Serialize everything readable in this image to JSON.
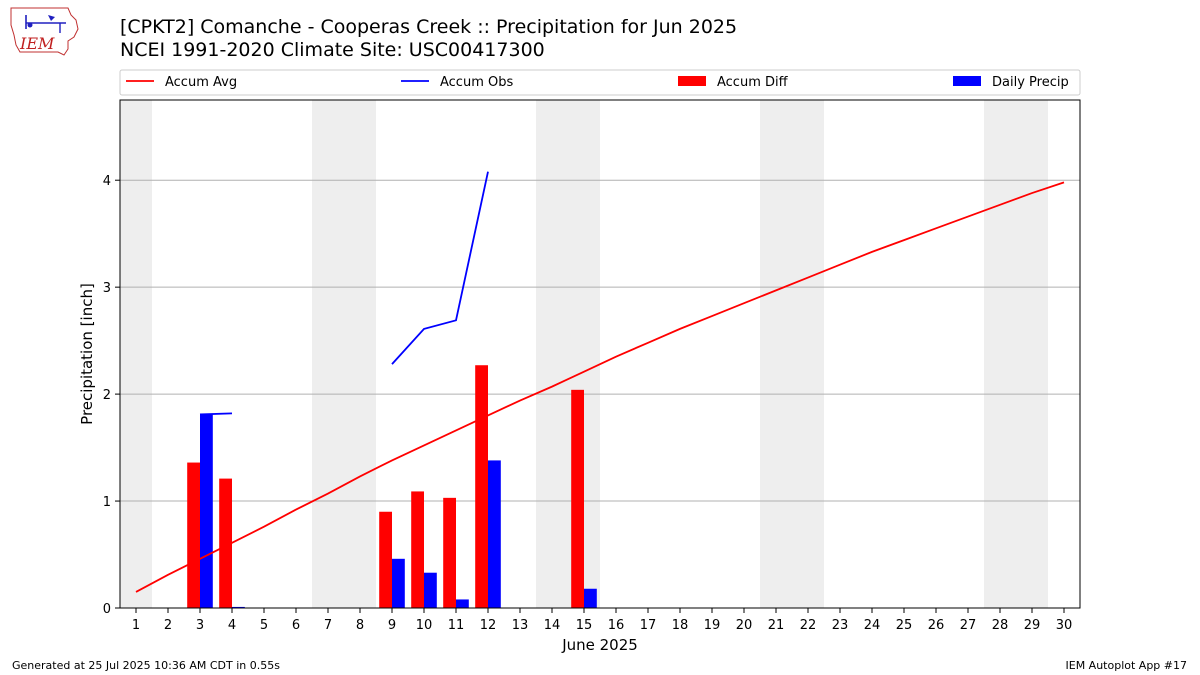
{
  "header": {
    "title_line1": "[CPKT2] Comanche - Cooperas Creek :: Precipitation for Jun 2025",
    "title_line2": "NCEI 1991-2020 Climate Site: USC00417300"
  },
  "logo": {
    "text": "IEM",
    "icon": "iem-iowa-logo"
  },
  "footer": {
    "left": "Generated at 25 Jul 2025 10:36 AM CDT in 0.55s",
    "right": "IEM Autoplot App #17"
  },
  "colors": {
    "avg": "#ff0000",
    "obs": "#0000ff",
    "diff": "#ff0000",
    "daily": "#0000ff",
    "weekend": "#eeeeee",
    "grid": "#b0b0b0"
  },
  "chart_data": {
    "type": "bar",
    "xlabel": "June 2025",
    "ylabel": "Precipitation [inch]",
    "xlim": [
      0.5,
      30.5
    ],
    "ylim": [
      0,
      4.75
    ],
    "yticks": [
      0,
      1,
      2,
      3,
      4
    ],
    "grid": true,
    "legend_placement": "top",
    "weekend_shading_days": [
      1,
      7,
      8,
      14,
      15,
      21,
      22,
      28,
      29
    ],
    "days": [
      1,
      2,
      3,
      4,
      5,
      6,
      7,
      8,
      9,
      10,
      11,
      12,
      13,
      14,
      15,
      16,
      17,
      18,
      19,
      20,
      21,
      22,
      23,
      24,
      25,
      26,
      27,
      28,
      29,
      30
    ],
    "series": [
      {
        "name": "Accum Avg",
        "kind": "line",
        "values": [
          0.15,
          0.31,
          0.46,
          0.61,
          0.76,
          0.92,
          1.07,
          1.23,
          1.38,
          1.52,
          1.66,
          1.8,
          1.94,
          2.07,
          2.21,
          2.35,
          2.48,
          2.61,
          2.73,
          2.85,
          2.97,
          3.09,
          3.21,
          3.33,
          3.44,
          3.55,
          3.66,
          3.77,
          3.88,
          3.98
        ]
      },
      {
        "name": "Accum Obs",
        "kind": "line",
        "segments": [
          {
            "x": [
              3,
              4
            ],
            "y": [
              1.81,
              1.82
            ]
          },
          {
            "x": [
              9,
              10,
              11,
              12
            ],
            "y": [
              2.28,
              2.61,
              2.69,
              4.08
            ]
          }
        ]
      },
      {
        "name": "Accum Diff",
        "kind": "bar",
        "points": [
          {
            "x": 3,
            "y": 1.36
          },
          {
            "x": 4,
            "y": 1.21
          },
          {
            "x": 9,
            "y": 0.9
          },
          {
            "x": 10,
            "y": 1.09
          },
          {
            "x": 11,
            "y": 1.03
          },
          {
            "x": 12,
            "y": 2.27
          },
          {
            "x": 15,
            "y": 2.04
          }
        ]
      },
      {
        "name": "Daily Precip",
        "kind": "bar",
        "points": [
          {
            "x": 3,
            "y": 1.81
          },
          {
            "x": 4,
            "y": 0.01
          },
          {
            "x": 9,
            "y": 0.46
          },
          {
            "x": 10,
            "y": 0.33
          },
          {
            "x": 11,
            "y": 0.08
          },
          {
            "x": 12,
            "y": 1.38
          },
          {
            "x": 15,
            "y": 0.18
          }
        ]
      }
    ]
  }
}
